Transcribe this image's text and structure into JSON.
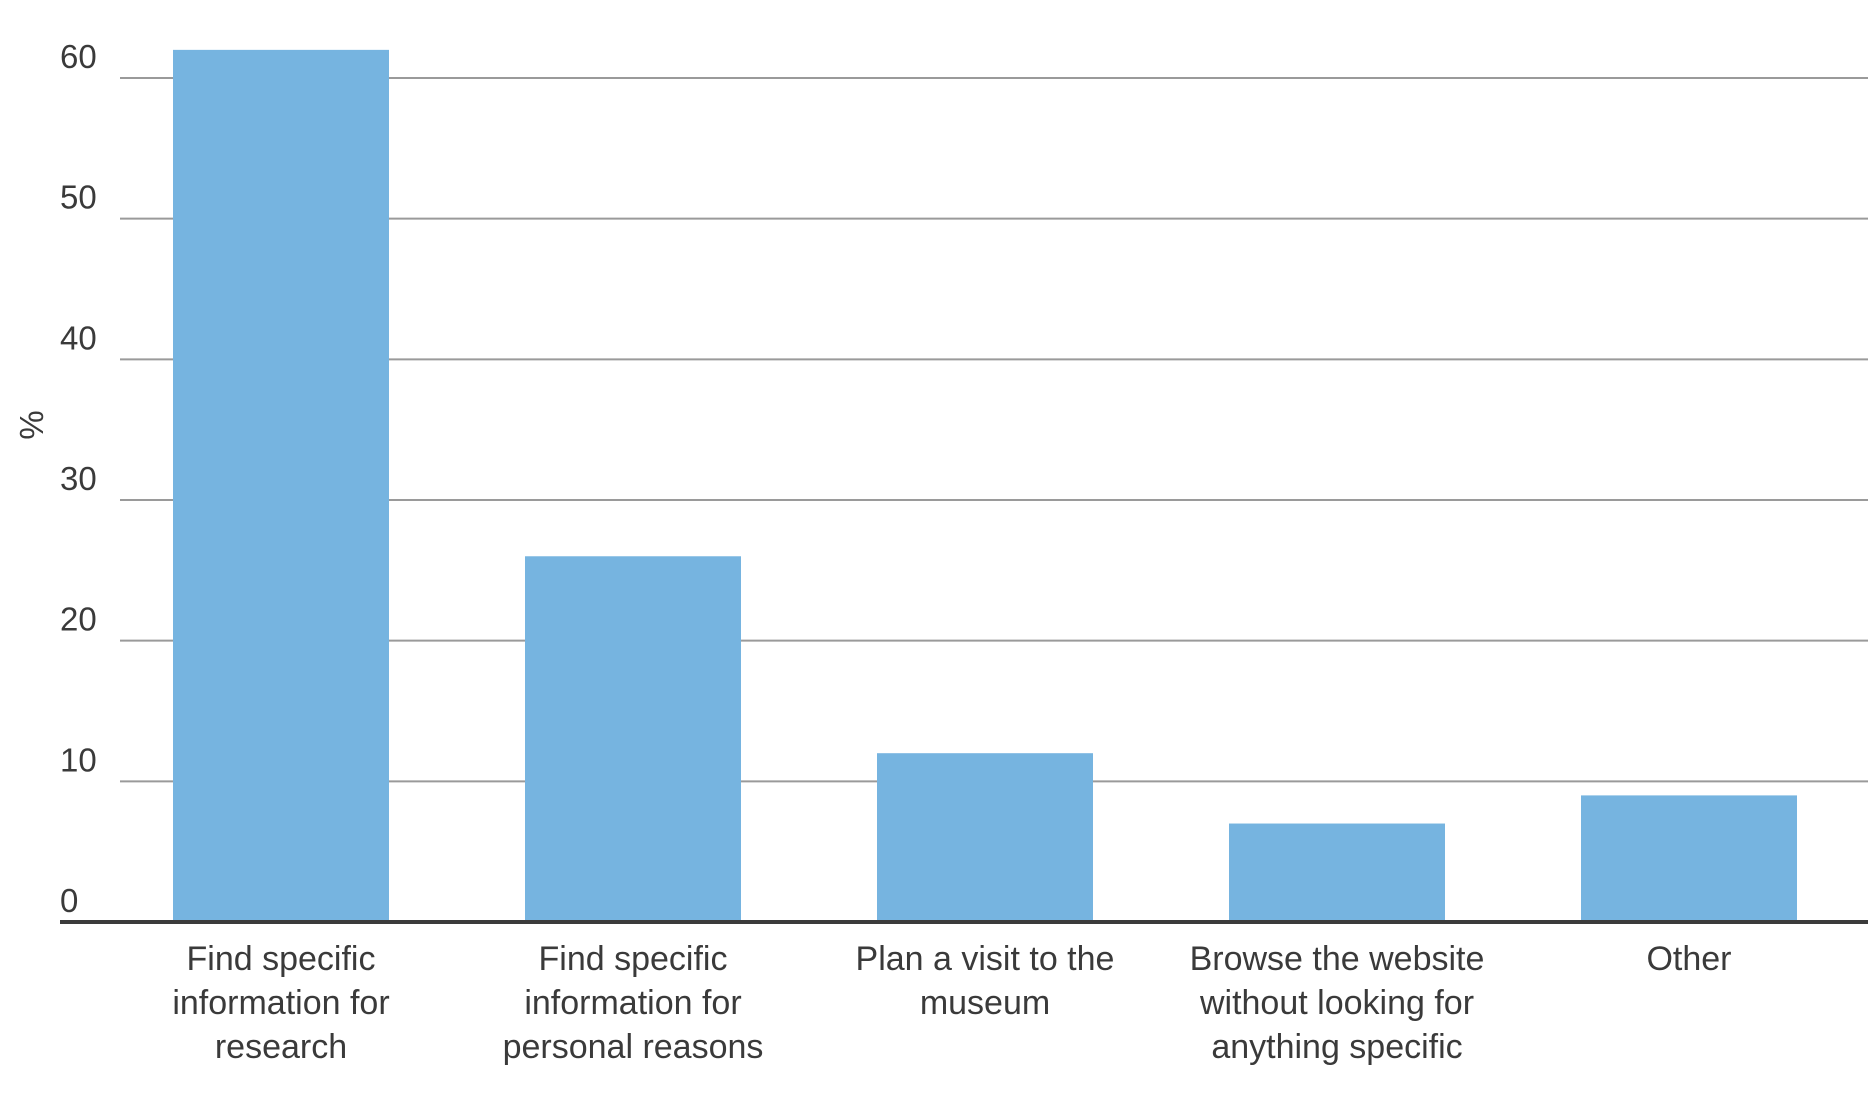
{
  "chart_data": {
    "type": "bar",
    "categories": [
      [
        "Find specific",
        "information for",
        "research"
      ],
      [
        "Find specific",
        "information for",
        "personal reasons"
      ],
      [
        "Plan a visit to the",
        "museum"
      ],
      [
        "Browse the website",
        "without looking for",
        "anything specific"
      ],
      [
        "Other"
      ]
    ],
    "values": [
      62,
      26,
      12,
      7,
      9
    ],
    "ylabel": "%",
    "ylim": [
      0,
      60
    ],
    "yticks": [
      0,
      10,
      20,
      30,
      40,
      50,
      60
    ],
    "grid": true,
    "legend": "none",
    "colors": {
      "bar": "#76b4e0",
      "grid": "#9a9a9a",
      "baseline": "#3b3b3b",
      "text": "#3a3a3a"
    }
  }
}
